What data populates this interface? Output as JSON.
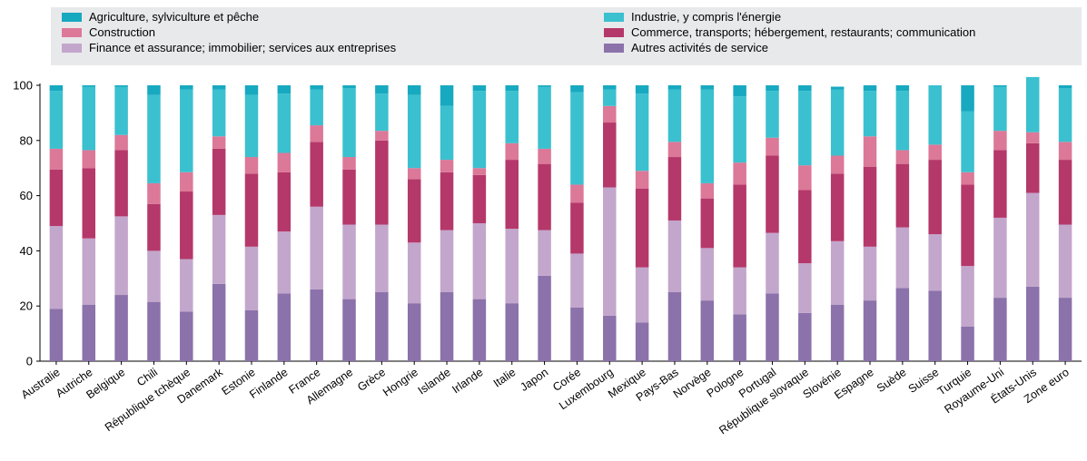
{
  "chart_data": {
    "type": "bar",
    "stacked": true,
    "legend_placement": "top",
    "grid": false,
    "ylim": [
      0,
      100
    ],
    "yticks": [
      0,
      20,
      40,
      60,
      80,
      100
    ],
    "categories": [
      "Australie",
      "Autriche",
      "Belgique",
      "Chili",
      "République tchèque",
      "Danemark",
      "Estonie",
      "Finlande",
      "France",
      "Allemagne",
      "Grèce",
      "Hongrie",
      "Islande",
      "Irlande",
      "Italie",
      "Japon",
      "Corée",
      "Luxembourg",
      "Mexique",
      "Pays-Bas",
      "Norvège",
      "Pologne",
      "Portugal",
      "République slovaque",
      "Slovénie",
      "Espagne",
      "Suède",
      "Suisse",
      "Turquie",
      "Royaume-Uni",
      "États-Unis",
      "Zone euro"
    ],
    "series": [
      {
        "name": "Autres activités de service",
        "color": "#8b72aa",
        "values": [
          19,
          20.5,
          24,
          21.5,
          18,
          28,
          18.5,
          24.5,
          26,
          22.5,
          25,
          21,
          25,
          22.5,
          21,
          31,
          19.5,
          16.5,
          14,
          25,
          22,
          17,
          24.5,
          17.5,
          20.5,
          22,
          26.5,
          25.5,
          12.5,
          23,
          27,
          23
        ]
      },
      {
        "name": "Finance et assurance; immobilier; services aux entreprises",
        "color": "#c3a6cc",
        "values": [
          30,
          24,
          28.5,
          18.5,
          19,
          25,
          23,
          22.5,
          30,
          27,
          24.5,
          22,
          22.5,
          27.5,
          27,
          16.5,
          19.5,
          46.5,
          20,
          26,
          19,
          17,
          22,
          18,
          23,
          19.5,
          22,
          20.5,
          22,
          29,
          34,
          26.5
        ]
      },
      {
        "name": "Commerce, transports; hébergement, restaurants; communication",
        "color": "#b5386a",
        "values": [
          20.5,
          25.5,
          24,
          17,
          24.5,
          24,
          26.5,
          21.5,
          23.5,
          20,
          30.5,
          23,
          21,
          17.5,
          25,
          24,
          18.5,
          23.5,
          28.5,
          23,
          18,
          30,
          28,
          26.5,
          24.5,
          29,
          23,
          27,
          29.5,
          24.5,
          18,
          23.5
        ]
      },
      {
        "name": "Construction",
        "color": "#dc7898",
        "values": [
          7.5,
          6.5,
          5.5,
          7.5,
          7,
          4.5,
          6,
          7,
          6,
          4.5,
          3.5,
          4,
          4.5,
          2.5,
          6,
          5.5,
          6.5,
          6,
          6.5,
          5.5,
          5.5,
          8,
          6.5,
          9,
          6.5,
          11,
          5,
          5.5,
          4.5,
          7,
          4,
          6.5
        ]
      },
      {
        "name": "Industrie, y compris l'énergie",
        "color": "#3bc0cf",
        "values": [
          21,
          23,
          17.5,
          32,
          30,
          17,
          22.5,
          21.5,
          13,
          25,
          13.5,
          26.5,
          19.5,
          28,
          19,
          22.5,
          33.5,
          6,
          28,
          19,
          34,
          24,
          17,
          27,
          24,
          16.5,
          21.5,
          21.5,
          22,
          16,
          20,
          19.5
        ]
      },
      {
        "name": "Agriculture, sylviculture et pêche",
        "color": "#17a9c0",
        "values": [
          2,
          0.5,
          0.5,
          3.5,
          1.5,
          1.5,
          3.5,
          3,
          1.5,
          1,
          3,
          3.5,
          7.5,
          2,
          2,
          0.5,
          2.5,
          1.5,
          3,
          1.5,
          1.5,
          4,
          2,
          2,
          1,
          2,
          2,
          0,
          9.5,
          0.5,
          0,
          1
        ]
      }
    ],
    "legend_order": [
      "Agriculture, sylviculture et pêche",
      "Construction",
      "Finance et assurance; immobilier; services aux entreprises",
      "Industrie, y compris l'énergie",
      "Commerce, transports; hébergement, restaurants; communication",
      "Autres activités de service"
    ]
  }
}
